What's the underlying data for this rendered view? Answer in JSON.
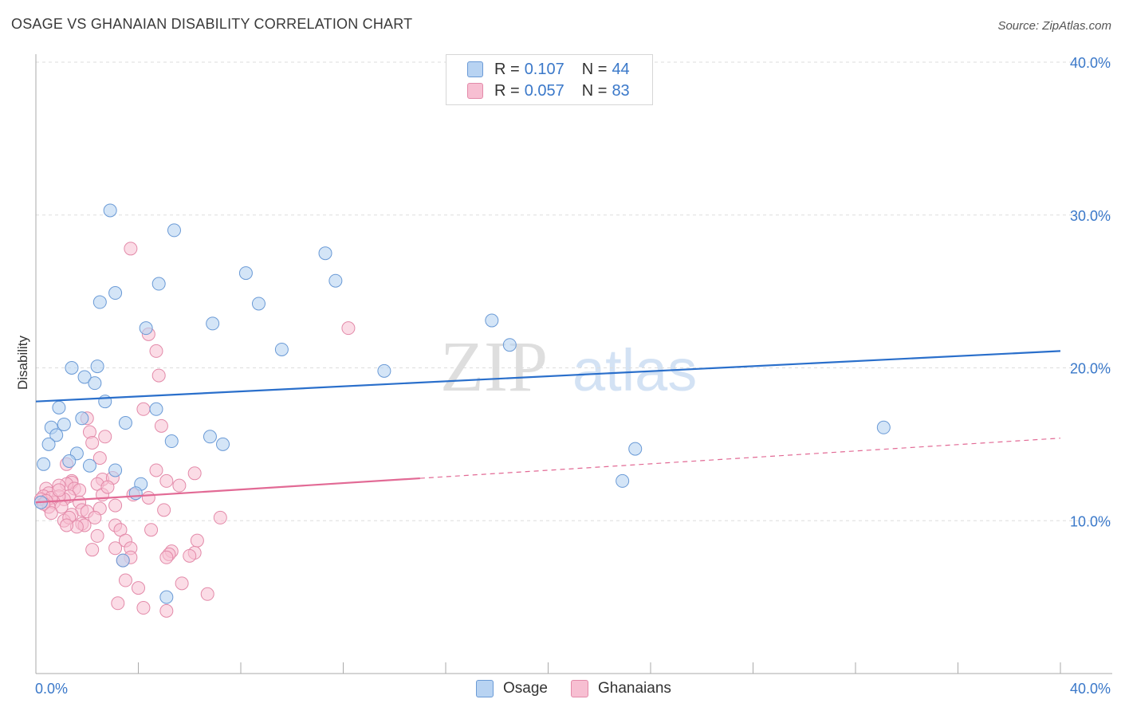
{
  "title": "OSAGE VS GHANAIAN DISABILITY CORRELATION CHART",
  "source": "Source: ZipAtlas.com",
  "legend": {
    "rows": [
      {
        "r_label": "R =",
        "r_value": "0.107",
        "n_label": "N =",
        "n_value": "44"
      },
      {
        "r_label": "R =",
        "r_value": "0.057",
        "n_label": "N =",
        "n_value": "83"
      }
    ]
  },
  "bottom_legend": {
    "osage": "Osage",
    "ghanaians": "Ghanaians"
  },
  "watermark": {
    "zip": "ZIP",
    "atlas": "atlas"
  },
  "colors": {
    "osage_fill": "#b8d3f2",
    "osage_stroke": "#6a9ad6",
    "osage_line": "#2a6fcb",
    "ghana_fill": "#f7bfd2",
    "ghana_stroke": "#e38aa9",
    "ghana_line": "#e26a95",
    "tick_label": "#3a78c9",
    "grid": "#dddddd"
  },
  "chart_data": {
    "type": "scatter",
    "title": "OSAGE VS GHANAIAN DISABILITY CORRELATION CHART",
    "xlabel": "",
    "ylabel": "Disability",
    "xlim": [
      0,
      40
    ],
    "ylim": [
      0,
      40
    ],
    "y_ticks": [
      10,
      20,
      30,
      40
    ],
    "y_tick_labels": [
      "10.0%",
      "20.0%",
      "30.0%",
      "40.0%"
    ],
    "x_tick_labels": [
      "0.0%",
      "40.0%"
    ],
    "series": [
      {
        "name": "Osage",
        "r": 0.107,
        "n": 44,
        "trend": {
          "x0": 0,
          "y0": 17.8,
          "x1": 40,
          "y1": 21.1,
          "solid_until": 40
        },
        "points": [
          [
            2.9,
            30.3
          ],
          [
            5.4,
            29.0
          ],
          [
            11.3,
            27.5
          ],
          [
            8.2,
            26.2
          ],
          [
            11.7,
            25.7
          ],
          [
            4.8,
            25.5
          ],
          [
            3.1,
            24.9
          ],
          [
            2.5,
            24.3
          ],
          [
            8.7,
            24.2
          ],
          [
            4.3,
            22.6
          ],
          [
            6.9,
            22.9
          ],
          [
            17.8,
            23.1
          ],
          [
            18.5,
            21.5
          ],
          [
            9.6,
            21.2
          ],
          [
            1.4,
            20.0
          ],
          [
            2.4,
            20.1
          ],
          [
            13.6,
            19.8
          ],
          [
            1.9,
            19.4
          ],
          [
            2.3,
            19.0
          ],
          [
            2.7,
            17.8
          ],
          [
            0.9,
            17.4
          ],
          [
            4.7,
            17.3
          ],
          [
            1.8,
            16.7
          ],
          [
            3.5,
            16.4
          ],
          [
            0.6,
            16.1
          ],
          [
            1.1,
            16.3
          ],
          [
            33.1,
            16.1
          ],
          [
            0.8,
            15.6
          ],
          [
            6.8,
            15.5
          ],
          [
            5.3,
            15.2
          ],
          [
            7.3,
            15.0
          ],
          [
            0.5,
            15.0
          ],
          [
            23.4,
            14.7
          ],
          [
            1.6,
            14.4
          ],
          [
            1.3,
            13.9
          ],
          [
            0.3,
            13.7
          ],
          [
            2.1,
            13.6
          ],
          [
            3.1,
            13.3
          ],
          [
            22.9,
            12.6
          ],
          [
            4.1,
            12.4
          ],
          [
            3.9,
            11.8
          ],
          [
            0.2,
            11.2
          ],
          [
            3.4,
            7.4
          ],
          [
            5.1,
            5.0
          ]
        ]
      },
      {
        "name": "Ghanaians",
        "r": 0.057,
        "n": 83,
        "trend": {
          "x0": 0,
          "y0": 11.2,
          "x1": 40,
          "y1": 15.4,
          "solid_until": 15
        },
        "points": [
          [
            3.7,
            27.8
          ],
          [
            12.2,
            22.6
          ],
          [
            4.4,
            22.2
          ],
          [
            4.7,
            21.1
          ],
          [
            4.8,
            19.5
          ],
          [
            4.2,
            17.3
          ],
          [
            2.0,
            16.7
          ],
          [
            4.9,
            16.2
          ],
          [
            2.1,
            15.8
          ],
          [
            2.7,
            15.5
          ],
          [
            2.2,
            15.1
          ],
          [
            2.5,
            14.1
          ],
          [
            6.2,
            13.1
          ],
          [
            4.7,
            13.3
          ],
          [
            2.6,
            12.7
          ],
          [
            3.0,
            12.8
          ],
          [
            1.4,
            12.6
          ],
          [
            5.1,
            12.6
          ],
          [
            1.4,
            12.5
          ],
          [
            1.2,
            12.4
          ],
          [
            2.4,
            12.4
          ],
          [
            5.6,
            12.3
          ],
          [
            0.9,
            12.3
          ],
          [
            1.5,
            12.1
          ],
          [
            0.4,
            12.1
          ],
          [
            1.7,
            12.0
          ],
          [
            0.5,
            11.8
          ],
          [
            2.6,
            11.7
          ],
          [
            3.8,
            11.7
          ],
          [
            1.3,
            11.6
          ],
          [
            1.1,
            11.4
          ],
          [
            0.3,
            11.6
          ],
          [
            0.9,
            11.6
          ],
          [
            0.7,
            11.2
          ],
          [
            0.6,
            11.5
          ],
          [
            0.2,
            11.4
          ],
          [
            0.4,
            11.3
          ],
          [
            1.7,
            11.2
          ],
          [
            3.1,
            11.0
          ],
          [
            0.5,
            10.9
          ],
          [
            0.3,
            11.1
          ],
          [
            1.0,
            10.9
          ],
          [
            2.5,
            10.8
          ],
          [
            1.8,
            10.7
          ],
          [
            2.0,
            10.6
          ],
          [
            1.4,
            10.4
          ],
          [
            0.6,
            10.5
          ],
          [
            2.3,
            10.2
          ],
          [
            5.0,
            10.7
          ],
          [
            7.2,
            10.2
          ],
          [
            1.1,
            10.0
          ],
          [
            1.3,
            10.2
          ],
          [
            1.8,
            9.8
          ],
          [
            1.9,
            9.7
          ],
          [
            1.6,
            9.6
          ],
          [
            1.2,
            9.7
          ],
          [
            3.1,
            9.7
          ],
          [
            3.3,
            9.4
          ],
          [
            4.5,
            9.4
          ],
          [
            2.4,
            9.0
          ],
          [
            3.5,
            8.7
          ],
          [
            6.3,
            8.7
          ],
          [
            2.2,
            8.1
          ],
          [
            3.1,
            8.2
          ],
          [
            3.7,
            8.2
          ],
          [
            5.3,
            8.0
          ],
          [
            5.2,
            7.8
          ],
          [
            6.2,
            7.9
          ],
          [
            5.1,
            7.6
          ],
          [
            6.0,
            7.7
          ],
          [
            3.7,
            7.6
          ],
          [
            3.4,
            7.4
          ],
          [
            3.5,
            6.1
          ],
          [
            5.7,
            5.9
          ],
          [
            4.0,
            5.6
          ],
          [
            6.7,
            5.2
          ],
          [
            3.2,
            4.6
          ],
          [
            4.2,
            4.3
          ],
          [
            5.1,
            4.1
          ],
          [
            1.2,
            13.7
          ],
          [
            0.9,
            12.0
          ],
          [
            2.8,
            12.2
          ],
          [
            4.4,
            11.5
          ]
        ]
      }
    ]
  }
}
